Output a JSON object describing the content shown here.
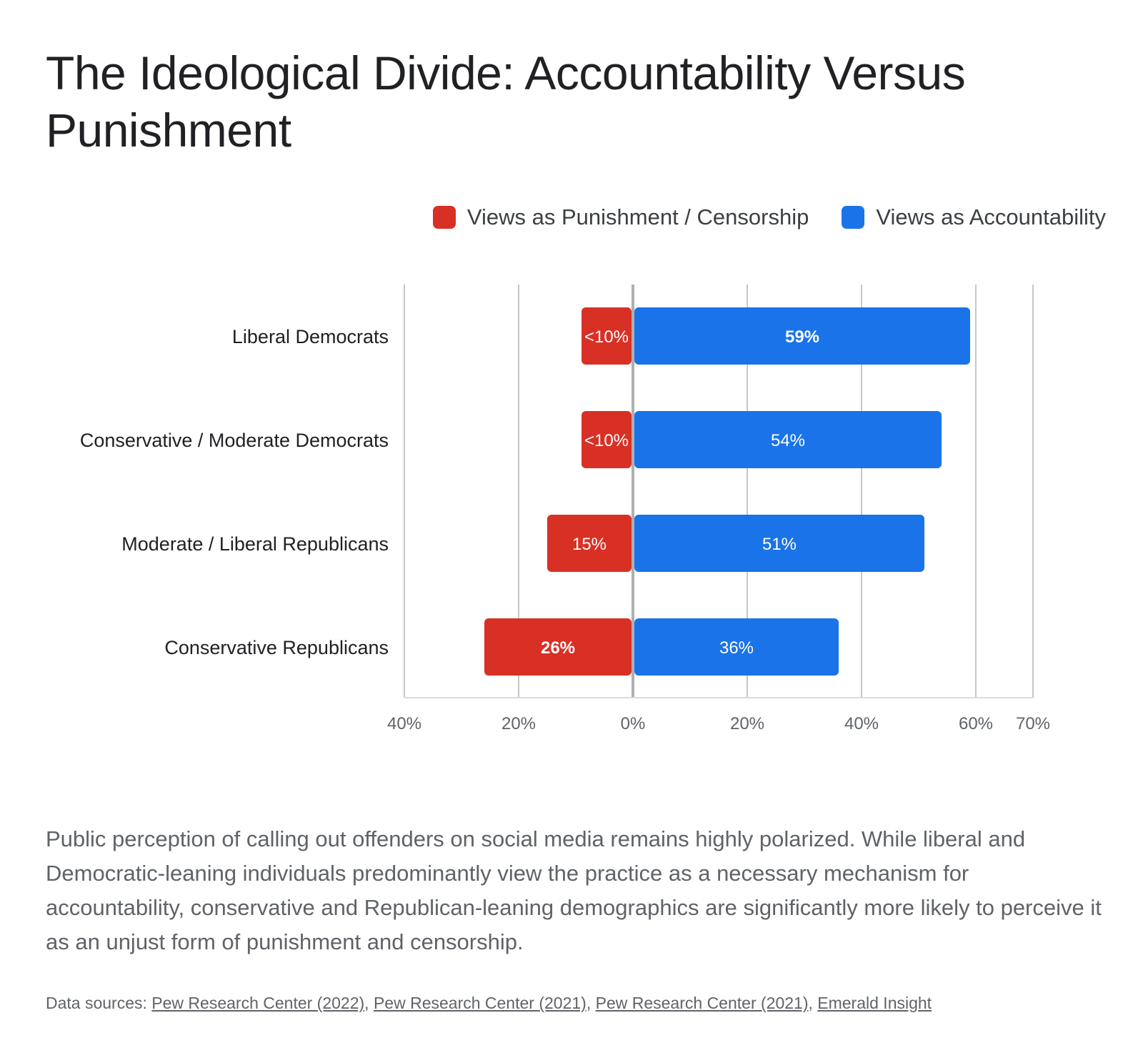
{
  "title": "The Ideological Divide: Accountability Versus Punishment",
  "description": "Public perception of calling out offenders on social media remains highly polarized. While liberal and Democratic-leaning individuals predominantly view the practice as a necessary mechanism for accountability, conservative and Republican-leaning demographics are significantly more likely to perceive it as an unjust form of punishment and censorship.",
  "sources": {
    "prefix": "Data sources: ",
    "links": [
      "Pew Research Center (2022)",
      "Pew Research Center (2021)",
      "Pew Research Center (2021)",
      "Emerald Insight"
    ]
  },
  "colors": {
    "punishment": "#d93025",
    "accountability": "#1a73e8",
    "grid": "#c6c6c6",
    "axis": "#dadce0"
  },
  "chart_data": {
    "type": "bar",
    "orientation": "horizontal-diverging",
    "categories": [
      "Liberal Democrats",
      "Conservative / Moderate Democrats",
      "Moderate / Liberal Republicans",
      "Conservative Republicans"
    ],
    "series": [
      {
        "name": "Views as Punishment / Censorship",
        "values": [
          9,
          9,
          15,
          26
        ],
        "labels": [
          "<10%",
          "<10%",
          "15%",
          "26%"
        ],
        "bold": [
          false,
          false,
          false,
          true
        ]
      },
      {
        "name": "Views as Accountability",
        "values": [
          59,
          54,
          51,
          36
        ],
        "labels": [
          "59%",
          "54%",
          "51%",
          "36%"
        ],
        "bold": [
          true,
          false,
          false,
          false
        ]
      }
    ],
    "xlim": [
      -40,
      70
    ],
    "ticks": [
      {
        "value": -40,
        "label": "40%"
      },
      {
        "value": -20,
        "label": "20%"
      },
      {
        "value": 0,
        "label": "0%"
      },
      {
        "value": 20,
        "label": "20%"
      },
      {
        "value": 40,
        "label": "40%"
      },
      {
        "value": 60,
        "label": "60%"
      },
      {
        "value": 70,
        "label": "70%"
      }
    ],
    "grid": true,
    "legend_position": "top-right"
  }
}
